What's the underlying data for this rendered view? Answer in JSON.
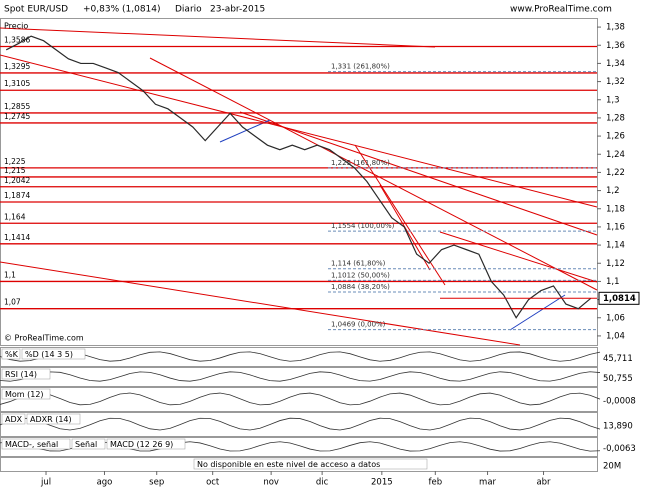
{
  "chart_data": {
    "type": "line",
    "title": "Spot EUR/USD",
    "change": "+0,83% (1,0814)",
    "period": "Diario",
    "date": "23-abr-2015",
    "website": "www.ProRealTime.com",
    "y_label": "Precio",
    "copyright": "© ProRealTime.com",
    "series": [
      {
        "color": "#2a2a2a",
        "values": [
          1.355,
          1.362,
          1.37,
          1.365,
          1.355,
          1.345,
          1.34,
          1.34,
          1.335,
          1.33,
          1.32,
          1.31,
          1.295,
          1.29,
          1.28,
          1.27,
          1.255,
          1.27,
          1.285,
          1.27,
          1.26,
          1.25,
          1.245,
          1.25,
          1.245,
          1.25,
          1.245,
          1.235,
          1.225,
          1.21,
          1.19,
          1.17,
          1.16,
          1.13,
          1.12,
          1.135,
          1.14,
          1.135,
          1.13,
          1.1,
          1.085,
          1.06,
          1.08,
          1.09,
          1.095,
          1.075,
          1.07,
          1.0814
        ]
      }
    ],
    "last_price": {
      "value": 1.0814,
      "label": "1,0814"
    },
    "xlim": [
      -0.5,
      47.5
    ],
    "xticks": [
      {
        "value": 3.2,
        "label": "jul"
      },
      {
        "value": 7.9,
        "label": "ago"
      },
      {
        "value": 12.1,
        "label": "sep"
      },
      {
        "value": 16.6,
        "label": "oct"
      },
      {
        "value": 21.3,
        "label": "nov"
      },
      {
        "value": 25.4,
        "label": "dic"
      },
      {
        "value": 30.2,
        "label": "2015"
      },
      {
        "value": 34.5,
        "label": "feb"
      },
      {
        "value": 38.7,
        "label": "mar"
      },
      {
        "value": 43.2,
        "label": "abr"
      }
    ],
    "ylim": [
      1.03,
      1.39
    ],
    "yticks": [
      {
        "value": 1.04,
        "label": "1,04"
      },
      {
        "value": 1.06,
        "label": "1,06"
      },
      {
        "value": 1.08,
        "label": "1,08"
      },
      {
        "value": 1.1,
        "label": "1,1"
      },
      {
        "value": 1.12,
        "label": "1,12"
      },
      {
        "value": 1.14,
        "label": "1,14"
      },
      {
        "value": 1.16,
        "label": "1,16"
      },
      {
        "value": 1.18,
        "label": "1,18"
      },
      {
        "value": 1.2,
        "label": "1,2"
      },
      {
        "value": 1.22,
        "label": "1,22"
      },
      {
        "value": 1.24,
        "label": "1,24"
      },
      {
        "value": 1.26,
        "label": "1,26"
      },
      {
        "value": 1.28,
        "label": "1,28"
      },
      {
        "value": 1.3,
        "label": "1,3"
      },
      {
        "value": 1.32,
        "label": "1,32"
      },
      {
        "value": 1.34,
        "label": "1,34"
      },
      {
        "value": 1.36,
        "label": "1,36"
      },
      {
        "value": 1.38,
        "label": "1,38"
      }
    ],
    "levels": [
      {
        "value": 1.3586,
        "label": "1,3586"
      },
      {
        "value": 1.3295,
        "label": "1,3295"
      },
      {
        "value": 1.3105,
        "label": "1,3105"
      },
      {
        "value": 1.2855,
        "label": "1,2855"
      },
      {
        "value": 1.2745,
        "label": "1,2745"
      },
      {
        "value": 1.225,
        "label": "1,225"
      },
      {
        "value": 1.215,
        "label": "1,215"
      },
      {
        "value": 1.2042,
        "label": "1,2042"
      },
      {
        "value": 1.1874,
        "label": "1,1874"
      },
      {
        "value": 1.164,
        "label": "1,164"
      },
      {
        "value": 1.1414,
        "label": "1,1414"
      },
      {
        "value": 1.1,
        "label": "1,1"
      },
      {
        "value": 1.07,
        "label": "1,07"
      }
    ],
    "fib_levels": [
      {
        "value": 1.331,
        "label": "1,331 (261,80%)"
      },
      {
        "value": 1.225,
        "label": "1,225 (161,80%)"
      },
      {
        "value": 1.1554,
        "label": "1,1554 (100,00%)"
      },
      {
        "value": 1.114,
        "label": "1,114 (61,80%)"
      },
      {
        "value": 1.1012,
        "label": "1,1012 (50,00%)"
      },
      {
        "value": 1.0884,
        "label": "1,0884 (38,20%)"
      },
      {
        "value": 1.0469,
        "label": "1,0469 (0,00%)"
      }
    ],
    "panels": [
      {
        "labels": [
          "%K",
          "%D (14 3 5)"
        ],
        "value_label": "45,711"
      },
      {
        "labels": [
          "RSI (14)"
        ],
        "value_label": "50,755"
      },
      {
        "labels": [
          "Mom (12)"
        ],
        "value_label": "-0,0008"
      },
      {
        "labels": [
          "ADX",
          "ADXR (14)"
        ],
        "value_label": "13,890"
      },
      {
        "labels": [
          "MACD-, señal",
          "Señal",
          "MACD (12 26 9)"
        ],
        "value_label": "-0,0063"
      },
      {
        "labels": [
          "No disponible en este nivel de acceso a datos"
        ],
        "value_label": "20M"
      }
    ]
  }
}
